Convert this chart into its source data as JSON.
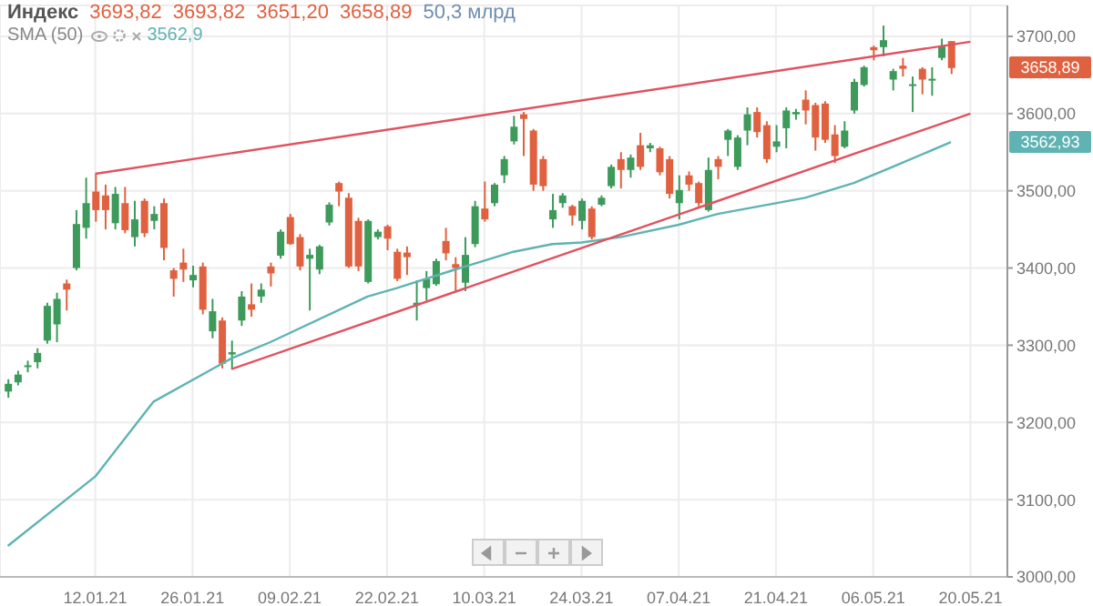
{
  "chart_data": {
    "type": "candlestick",
    "title": "Индекс",
    "annotations": [
      "3693,82",
      "3693,82",
      "3651,20",
      "3658,89",
      "50,3 млрд",
      "3562,9",
      "3658,89",
      "3562,93"
    ],
    "categories": [
      null,
      null,
      null,
      null,
      null,
      null,
      null,
      null,
      null,
      "12.01.21",
      null,
      null,
      null,
      null,
      null,
      null,
      null,
      null,
      null,
      "26.01.21",
      null,
      null,
      null,
      null,
      null,
      null,
      null,
      null,
      null,
      "09.02.21",
      null,
      null,
      null,
      null,
      null,
      null,
      null,
      null,
      null,
      "22.02.21",
      null,
      null,
      null,
      null,
      null,
      null,
      null,
      null,
      null,
      "10.03.21",
      null,
      null,
      null,
      null,
      null,
      null,
      null,
      null,
      null,
      "24.03.21",
      null,
      null,
      null,
      null,
      null,
      null,
      null,
      null,
      null,
      "07.04.21",
      null,
      null,
      null,
      null,
      null,
      null,
      null,
      null,
      null,
      "21.04.21",
      null,
      null,
      null,
      null,
      null,
      null,
      null,
      null,
      null,
      "06.05.21",
      null,
      null,
      null,
      null,
      null,
      null,
      null,
      null,
      null,
      "20.05.21"
    ],
    "ohlc": [
      [
        3240,
        3256,
        3232,
        3250
      ],
      [
        3252,
        3267,
        3248,
        3262
      ],
      [
        3272,
        3280,
        3265,
        3274
      ],
      [
        3278,
        3296,
        3270,
        3290
      ],
      [
        3306,
        3355,
        3302,
        3351
      ],
      [
        3327,
        3368,
        3304,
        3360
      ],
      [
        3380,
        3385,
        3345,
        3372
      ],
      [
        3400,
        3475,
        3397,
        3457
      ],
      [
        3452,
        3517,
        3438,
        3484
      ],
      [
        3499,
        3522,
        3460,
        3475
      ],
      [
        3494,
        3508,
        3450,
        3475
      ],
      [
        3458,
        3505,
        3450,
        3496
      ],
      [
        3484,
        3505,
        3445,
        3449
      ],
      [
        3440,
        3487,
        3428,
        3463
      ],
      [
        3487,
        3490,
        3440,
        3445
      ],
      [
        3461,
        3480,
        3450,
        3470
      ],
      [
        3484,
        3490,
        3410,
        3426
      ],
      [
        3397,
        3400,
        3363,
        3386
      ],
      [
        3407,
        3425,
        3382,
        3398
      ],
      [
        3384,
        3403,
        3375,
        3391
      ],
      [
        3402,
        3407,
        3340,
        3346
      ],
      [
        3318,
        3360,
        3309,
        3344
      ],
      [
        3332,
        3336,
        3270,
        3276
      ],
      [
        3288,
        3306,
        3269,
        3291
      ],
      [
        3332,
        3370,
        3325,
        3363
      ],
      [
        3353,
        3380,
        3337,
        3346
      ],
      [
        3363,
        3380,
        3355,
        3372
      ],
      [
        3402,
        3407,
        3376,
        3393
      ],
      [
        3416,
        3450,
        3412,
        3447
      ],
      [
        3466,
        3470,
        3430,
        3431
      ],
      [
        3440,
        3444,
        3397,
        3402
      ],
      [
        3412,
        3425,
        3345,
        3417
      ],
      [
        3398,
        3430,
        3392,
        3428
      ],
      [
        3459,
        3485,
        3455,
        3482
      ],
      [
        3510,
        3512,
        3480,
        3499
      ],
      [
        3491,
        3497,
        3400,
        3402
      ],
      [
        3461,
        3465,
        3396,
        3402
      ],
      [
        3382,
        3463,
        3380,
        3461
      ],
      [
        3440,
        3450,
        3437,
        3447
      ],
      [
        3454,
        3456,
        3423,
        3438
      ],
      [
        3421,
        3425,
        3383,
        3386
      ],
      [
        3420,
        3428,
        3391,
        3414
      ],
      [
        3352,
        3384,
        3332,
        3355
      ],
      [
        3374,
        3396,
        3358,
        3386
      ],
      [
        3379,
        3412,
        3377,
        3409
      ],
      [
        3435,
        3452,
        3410,
        3419
      ],
      [
        3405,
        3414,
        3370,
        3400
      ],
      [
        3381,
        3440,
        3370,
        3417
      ],
      [
        3431,
        3487,
        3427,
        3480
      ],
      [
        3477,
        3512,
        3460,
        3463
      ],
      [
        3484,
        3510,
        3480,
        3508
      ],
      [
        3520,
        3545,
        3510,
        3541
      ],
      [
        3564,
        3597,
        3560,
        3583
      ],
      [
        3599,
        3602,
        3545,
        3593
      ],
      [
        3578,
        3580,
        3500,
        3508
      ],
      [
        3541,
        3545,
        3500,
        3506
      ],
      [
        3463,
        3496,
        3452,
        3475
      ],
      [
        3484,
        3497,
        3478,
        3494
      ],
      [
        3480,
        3482,
        3455,
        3468
      ],
      [
        3461,
        3490,
        3450,
        3487
      ],
      [
        3477,
        3480,
        3437,
        3440
      ],
      [
        3482,
        3494,
        3480,
        3491
      ],
      [
        3506,
        3534,
        3503,
        3531
      ],
      [
        3541,
        3550,
        3503,
        3527
      ],
      [
        3527,
        3547,
        3517,
        3543
      ],
      [
        3559,
        3575,
        3527,
        3531
      ],
      [
        3555,
        3562,
        3550,
        3559
      ],
      [
        3555,
        3557,
        3520,
        3524
      ],
      [
        3541,
        3545,
        3490,
        3496
      ],
      [
        3484,
        3520,
        3463,
        3501
      ],
      [
        3520,
        3525,
        3500,
        3508
      ],
      [
        3510,
        3512,
        3480,
        3484
      ],
      [
        3475,
        3543,
        3473,
        3527
      ],
      [
        3541,
        3545,
        3515,
        3531
      ],
      [
        3566,
        3580,
        3545,
        3578
      ],
      [
        3531,
        3572,
        3527,
        3569
      ],
      [
        3578,
        3608,
        3559,
        3599
      ],
      [
        3602,
        3608,
        3569,
        3576
      ],
      [
        3585,
        3590,
        3536,
        3541
      ],
      [
        3557,
        3585,
        3550,
        3564
      ],
      [
        3581,
        3608,
        3555,
        3604
      ],
      [
        3599,
        3606,
        3592,
        3602
      ],
      [
        3618,
        3630,
        3586,
        3604
      ],
      [
        3611,
        3614,
        3552,
        3569
      ],
      [
        3613,
        3616,
        3562,
        3566
      ],
      [
        3573,
        3585,
        3536,
        3545
      ],
      [
        3557,
        3590,
        3555,
        3578
      ],
      [
        3604,
        3645,
        3600,
        3641
      ],
      [
        3637,
        3662,
        3635,
        3660
      ],
      [
        3686,
        3688,
        3669,
        3682
      ],
      [
        3686,
        3714,
        3674,
        3695
      ],
      [
        3644,
        3658,
        3630,
        3655
      ],
      [
        3662,
        3672,
        3648,
        3658
      ],
      [
        3636,
        3648,
        3602,
        3638
      ],
      [
        3658,
        3660,
        3625,
        3644
      ],
      [
        3643,
        3660,
        3623,
        3645
      ],
      [
        3672,
        3697,
        3669,
        3688
      ],
      [
        3693.82,
        3693.82,
        3651.2,
        3658.89
      ],
      null,
      null
    ],
    "colors": [
      "#3d9a5b",
      "#3d9a5b",
      "#3d9a5b",
      "#3d9a5b",
      "#3d9a5b",
      "#3d9a5b",
      "#e0613f",
      "#3d9a5b",
      "#3d9a5b",
      "#e0613f",
      "#e0613f",
      "#3d9a5b",
      "#e0613f",
      "#3d9a5b",
      "#e0613f",
      "#3d9a5b",
      "#e0613f",
      "#e0613f",
      "#e0613f",
      "#3d9a5b",
      "#e0613f",
      "#3d9a5b",
      "#e0613f",
      "#3d9a5b",
      "#3d9a5b",
      "#e0613f",
      "#3d9a5b",
      "#e0613f",
      "#3d9a5b",
      "#e0613f",
      "#e0613f",
      "#3d9a5b",
      "#3d9a5b",
      "#3d9a5b",
      "#e0613f",
      "#e0613f",
      "#e0613f",
      "#3d9a5b",
      "#3d9a5b",
      "#e0613f",
      "#e0613f",
      "#e0613f",
      "#3d9a5b",
      "#3d9a5b",
      "#3d9a5b",
      "#e0613f",
      "#e0613f",
      "#3d9a5b",
      "#3d9a5b",
      "#e0613f",
      "#3d9a5b",
      "#3d9a5b",
      "#3d9a5b",
      "#e0613f",
      "#e0613f",
      "#e0613f",
      "#3d9a5b",
      "#3d9a5b",
      "#e0613f",
      "#3d9a5b",
      "#e0613f",
      "#3d9a5b",
      "#3d9a5b",
      "#e0613f",
      "#3d9a5b",
      "#e0613f",
      "#3d9a5b",
      "#e0613f",
      "#e0613f",
      "#3d9a5b",
      "#e0613f",
      "#e0613f",
      "#3d9a5b",
      "#e0613f",
      "#3d9a5b",
      "#3d9a5b",
      "#3d9a5b",
      "#e0613f",
      "#e0613f",
      "#3d9a5b",
      "#3d9a5b",
      "#3d9a5b",
      "#e0613f",
      "#e0613f",
      "#e0613f",
      "#e0613f",
      "#3d9a5b",
      "#3d9a5b",
      "#3d9a5b",
      "#e0613f",
      "#3d9a5b",
      "#3d9a5b",
      "#e0613f",
      "#3d9a5b",
      "#e0613f",
      "#3d9a5b",
      "#3d9a5b",
      "#e0613f",
      null,
      null
    ],
    "series": [
      {
        "name": "SMA (50)",
        "type": "line",
        "color": "#5fb3b3",
        "values": [
          3040,
          null,
          null,
          null,
          null,
          null,
          null,
          null,
          null,
          3130,
          null,
          null,
          null,
          null,
          null,
          3227,
          null,
          null,
          null,
          null,
          null,
          3269,
          null,
          3283,
          null,
          null,
          null,
          3304,
          null,
          null,
          null,
          null,
          null,
          null,
          null,
          null,
          null,
          3363,
          null,
          null,
          3374,
          null,
          null,
          null,
          null,
          null,
          3398,
          null,
          null,
          null,
          null,
          null,
          3421,
          null,
          null,
          null,
          3431,
          null,
          null,
          3433,
          null,
          null,
          null,
          3440,
          null,
          null,
          null,
          null,
          null,
          3456,
          null,
          null,
          null,
          3470,
          null,
          null,
          null,
          null,
          null,
          null,
          null,
          null,
          3491,
          null,
          null,
          null,
          null,
          3510,
          null,
          null,
          null,
          3531,
          null,
          null,
          null,
          null,
          null,
          3563,
          null,
          null
        ]
      },
      {
        "type": "line",
        "color": "#e0525f",
        "values": [
          null,
          null,
          null,
          null,
          null,
          null,
          null,
          null,
          null,
          3522,
          null,
          null,
          null,
          null,
          null,
          null,
          null,
          null,
          null,
          null,
          null,
          null,
          null,
          null,
          null,
          null,
          null,
          null,
          null,
          null,
          null,
          null,
          null,
          null,
          null,
          null,
          null,
          null,
          null,
          null,
          null,
          null,
          null,
          null,
          null,
          null,
          null,
          null,
          null,
          null,
          null,
          null,
          null,
          null,
          null,
          null,
          null,
          null,
          null,
          null,
          null,
          null,
          null,
          null,
          null,
          null,
          null,
          null,
          null,
          null,
          null,
          null,
          null,
          null,
          null,
          null,
          null,
          null,
          null,
          null,
          null,
          null,
          null,
          null,
          null,
          null,
          null,
          null,
          null,
          null,
          null,
          null,
          null,
          null,
          null,
          null,
          null,
          null,
          null,
          3693
        ]
      },
      {
        "type": "line",
        "color": "#e0525f",
        "values": [
          null,
          null,
          null,
          null,
          null,
          null,
          null,
          null,
          null,
          null,
          null,
          null,
          null,
          null,
          null,
          null,
          null,
          null,
          null,
          null,
          null,
          null,
          null,
          3269,
          null,
          null,
          null,
          null,
          null,
          null,
          null,
          null,
          null,
          null,
          null,
          null,
          null,
          null,
          null,
          null,
          null,
          null,
          null,
          null,
          null,
          null,
          null,
          null,
          null,
          null,
          null,
          null,
          null,
          null,
          null,
          null,
          null,
          null,
          null,
          null,
          null,
          null,
          null,
          null,
          null,
          null,
          null,
          null,
          null,
          null,
          null,
          null,
          null,
          null,
          null,
          null,
          null,
          null,
          null,
          null,
          null,
          null,
          null,
          null,
          null,
          null,
          null,
          null,
          null,
          null,
          null,
          null,
          null,
          null,
          null,
          null,
          null,
          null,
          null,
          3600
        ]
      }
    ],
    "ylim": [
      3000,
      3740
    ],
    "yticks": [
      {
        "value": 3000,
        "label": "3000,00"
      },
      {
        "value": 3100,
        "label": "3100,00"
      },
      {
        "value": 3200,
        "label": "3200,00"
      },
      {
        "value": 3300,
        "label": "3300,00"
      },
      {
        "value": 3400,
        "label": "3400,00"
      },
      {
        "value": 3500,
        "label": "3500,00"
      },
      {
        "value": 3600,
        "label": "3600,00"
      },
      {
        "value": 3700,
        "label": "3700,00"
      }
    ],
    "grid": true,
    "legend": "top left"
  }
}
